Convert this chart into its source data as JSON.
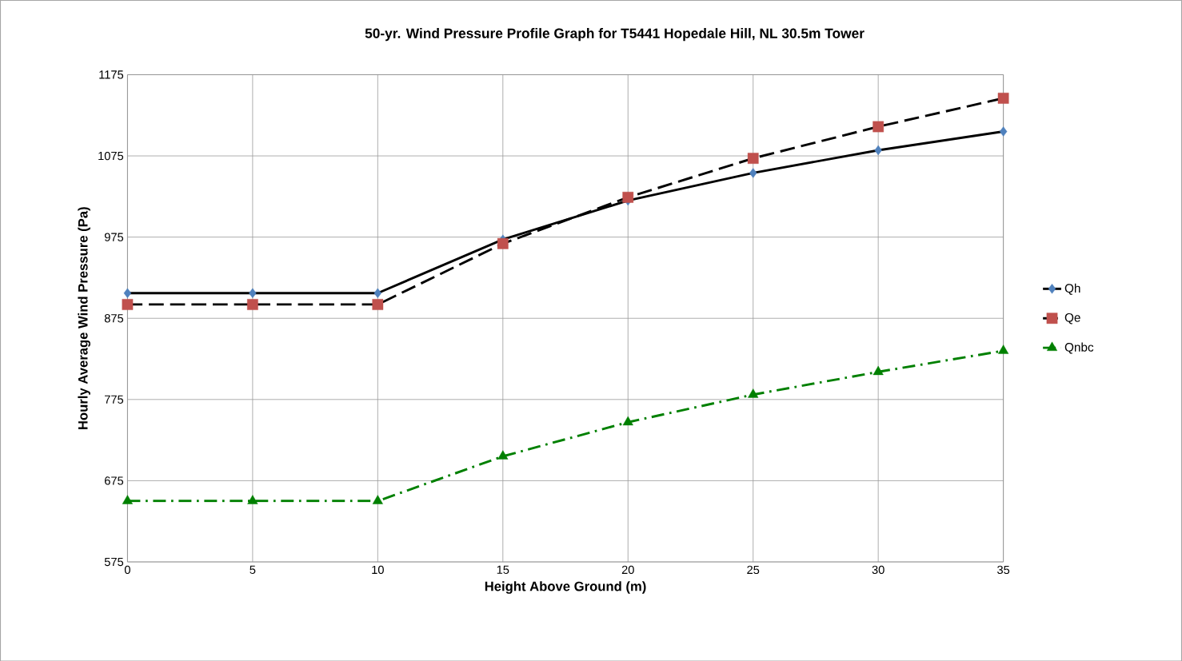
{
  "chart_data": {
    "type": "line",
    "title": "50-yr. Wind Pressure Profile Graph for T5441 Hopedale Hill, NL  30.5m Tower",
    "xlabel": "Height Above Ground (m)",
    "ylabel": "Hourly Average Wind Pressure (Pa)",
    "x": [
      0,
      5,
      10,
      15,
      20,
      25,
      30,
      35
    ],
    "series": [
      {
        "name": "Qh",
        "color": "#000000",
        "marker": "diamond",
        "colors": [
          "#4f81bd",
          "#4f81bd",
          "#4f81bd",
          "#4f81bd",
          "#4f81bd",
          "#4f81bd",
          "#4f81bd",
          "#4f81bd"
        ],
        "line_style": "solid",
        "values": [
          906,
          906,
          906,
          972,
          1020,
          1054,
          1082,
          1105
        ]
      },
      {
        "name": "Qe",
        "color": "#000000",
        "marker": "square",
        "colors": [
          "#c0504d",
          "#c0504d",
          "#c0504d",
          "#c0504d",
          "#c0504d",
          "#c0504d",
          "#c0504d",
          "#c0504d"
        ],
        "line_style": "dashed",
        "values": [
          892,
          892,
          892,
          967,
          1024,
          1072,
          1111,
          1146
        ]
      },
      {
        "name": "Qnbc",
        "color": "#008000",
        "marker": "triangle",
        "line_style": "dashdot",
        "values": [
          650,
          650,
          650,
          705,
          747,
          781,
          809,
          835
        ]
      }
    ],
    "xlim": [
      0,
      35
    ],
    "xticks": [
      0,
      5,
      10,
      15,
      20,
      25,
      30,
      35
    ],
    "ylim": [
      575,
      1175
    ],
    "yticks": [
      575,
      675,
      775,
      875,
      975,
      1075,
      1175
    ],
    "grid": true,
    "legend": "right"
  }
}
